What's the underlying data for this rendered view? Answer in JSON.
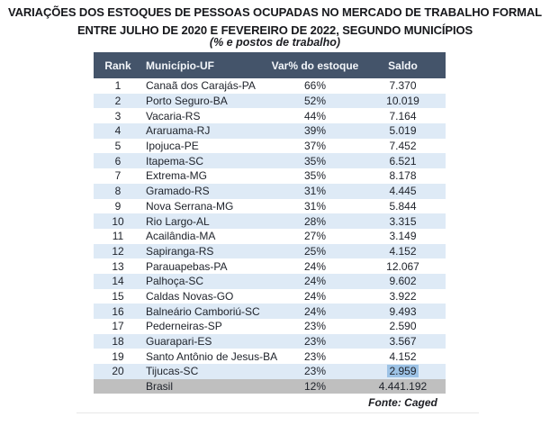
{
  "title": {
    "line1": "VARIAÇÕES DOS ESTOQUES DE PESSOAS OCUPADAS NO MERCADO DE TRABALHO FORMAL",
    "line2": "ENTRE JULHO DE 2020 E FEVEREIRO DE 2022, SEGUNDO MUNICÍPIOS",
    "subtitle": "(% e postos de trabalho)"
  },
  "table": {
    "columns": [
      "Rank",
      "Município-UF",
      "Var% do estoque",
      "Saldo"
    ],
    "rows": [
      {
        "rank": "1",
        "municipio": "Canaã dos Carajás-PA",
        "var": "66%",
        "saldo": "7.370"
      },
      {
        "rank": "2",
        "municipio": "Porto Seguro-BA",
        "var": "52%",
        "saldo": "10.019"
      },
      {
        "rank": "3",
        "municipio": "Vacaria-RS",
        "var": "44%",
        "saldo": "7.164"
      },
      {
        "rank": "4",
        "municipio": "Araruama-RJ",
        "var": "39%",
        "saldo": "5.019"
      },
      {
        "rank": "5",
        "municipio": "Ipojuca-PE",
        "var": "37%",
        "saldo": "7.452"
      },
      {
        "rank": "6",
        "municipio": "Itapema-SC",
        "var": "35%",
        "saldo": "6.521"
      },
      {
        "rank": "7",
        "municipio": "Extrema-MG",
        "var": "35%",
        "saldo": "8.178"
      },
      {
        "rank": "8",
        "municipio": "Gramado-RS",
        "var": "31%",
        "saldo": "4.445"
      },
      {
        "rank": "9",
        "municipio": "Nova Serrana-MG",
        "var": "31%",
        "saldo": "5.844"
      },
      {
        "rank": "10",
        "municipio": "Rio Largo-AL",
        "var": "28%",
        "saldo": "3.315"
      },
      {
        "rank": "11",
        "municipio": "Acailândia-MA",
        "var": "27%",
        "saldo": "3.149"
      },
      {
        "rank": "12",
        "municipio": "Sapiranga-RS",
        "var": "25%",
        "saldo": "4.152"
      },
      {
        "rank": "13",
        "municipio": "Parauapebas-PA",
        "var": "24%",
        "saldo": "12.067"
      },
      {
        "rank": "14",
        "municipio": "Palhoça-SC",
        "var": "24%",
        "saldo": "9.602"
      },
      {
        "rank": "15",
        "municipio": "Caldas Novas-GO",
        "var": "24%",
        "saldo": "3.922"
      },
      {
        "rank": "16",
        "municipio": "Balneário Camboriú-SC",
        "var": "24%",
        "saldo": "9.493"
      },
      {
        "rank": "17",
        "municipio": "Pederneiras-SP",
        "var": "23%",
        "saldo": "2.590"
      },
      {
        "rank": "18",
        "municipio": "Guarapari-ES",
        "var": "23%",
        "saldo": "3.567"
      },
      {
        "rank": "19",
        "municipio": "Santo Antônio de Jesus-BA",
        "var": "23%",
        "saldo": "4.152"
      },
      {
        "rank": "20",
        "municipio": "Tijucas-SC",
        "var": "23%",
        "saldo": "2.959",
        "saldo_highlighted": true
      }
    ],
    "total_row": {
      "rank": "",
      "municipio": "Brasil",
      "var": "12%",
      "saldo": "4.441.192"
    }
  },
  "footer": {
    "source": "Fonte: Caged"
  },
  "colors": {
    "header_bg": "#44546A",
    "header_text": "#F3F6FA",
    "alt_row_bg": "#DEEAF6",
    "total_row_bg": "#BFBFBF",
    "body_text": "#20242C",
    "highlight_bg": "#9DC3E6"
  },
  "chart_data": {
    "type": "table",
    "title": "VARIAÇÕES DOS ESTOQUES DE PESSOAS OCUPADAS NO MERCADO DE TRABALHO FORMAL ENTRE JULHO DE 2020 E FEVEREIRO DE 2022, SEGUNDO MUNICÍPIOS",
    "subtitle": "(% e postos de trabalho)",
    "columns": [
      "Rank",
      "Município-UF",
      "Var% do estoque",
      "Saldo"
    ],
    "rows": [
      [
        1,
        "Canaã dos Carajás-PA",
        "66%",
        7370
      ],
      [
        2,
        "Porto Seguro-BA",
        "52%",
        10019
      ],
      [
        3,
        "Vacaria-RS",
        "44%",
        7164
      ],
      [
        4,
        "Araruama-RJ",
        "39%",
        5019
      ],
      [
        5,
        "Ipojuca-PE",
        "37%",
        7452
      ],
      [
        6,
        "Itapema-SC",
        "35%",
        6521
      ],
      [
        7,
        "Extrema-MG",
        "35%",
        8178
      ],
      [
        8,
        "Gramado-RS",
        "31%",
        4445
      ],
      [
        9,
        "Nova Serrana-MG",
        "31%",
        5844
      ],
      [
        10,
        "Rio Largo-AL",
        "28%",
        3315
      ],
      [
        11,
        "Acailândia-MA",
        "27%",
        3149
      ],
      [
        12,
        "Sapiranga-RS",
        "25%",
        4152
      ],
      [
        13,
        "Parauapebas-PA",
        "24%",
        12067
      ],
      [
        14,
        "Palhoça-SC",
        "24%",
        9602
      ],
      [
        15,
        "Caldas Novas-GO",
        "24%",
        3922
      ],
      [
        16,
        "Balneário Camboriú-SC",
        "24%",
        9493
      ],
      [
        17,
        "Pederneiras-SP",
        "23%",
        2590
      ],
      [
        18,
        "Guarapari-ES",
        "23%",
        3567
      ],
      [
        19,
        "Santo Antônio de Jesus-BA",
        "23%",
        4152
      ],
      [
        20,
        "Tijucas-SC",
        "23%",
        2959
      ],
      [
        null,
        "Brasil",
        "12%",
        4441192
      ]
    ],
    "source": "Fonte: Caged"
  }
}
